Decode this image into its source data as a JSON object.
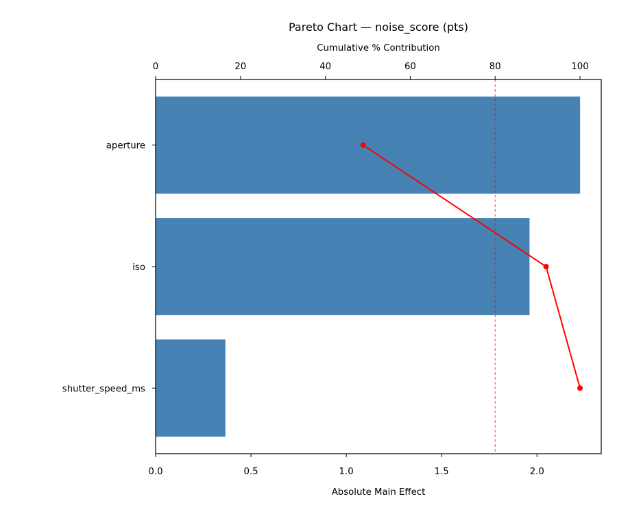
{
  "chart_data": {
    "type": "bar",
    "orientation": "horizontal",
    "title": "Pareto Chart — noise_score (pts)",
    "xlabel": "Absolute Main Effect",
    "x2label": "Cumulative % Contribution",
    "ylabel": "",
    "categories": [
      "aperture",
      "iso",
      "shutter_speed_ms"
    ],
    "values": [
      2.226,
      1.961,
      0.366
    ],
    "cumulative_percent": [
      48.9,
      92.0,
      100.0
    ],
    "xlim": [
      0,
      2.337
    ],
    "x2lim": [
      0,
      105
    ],
    "xticks": [
      "0.0",
      "0.5",
      "1.0",
      "1.5",
      "2.0"
    ],
    "xtick_values": [
      0,
      0.5,
      1.0,
      1.5,
      2.0
    ],
    "x2ticks": [
      "0",
      "20",
      "40",
      "60",
      "80",
      "100"
    ],
    "x2tick_values": [
      0,
      20,
      40,
      60,
      80,
      100
    ],
    "threshold_percent": 80,
    "grid": false,
    "colors": {
      "bar": "#4682b4",
      "cumulative_line": "#ff0000",
      "threshold_line": "#ff0000"
    }
  }
}
